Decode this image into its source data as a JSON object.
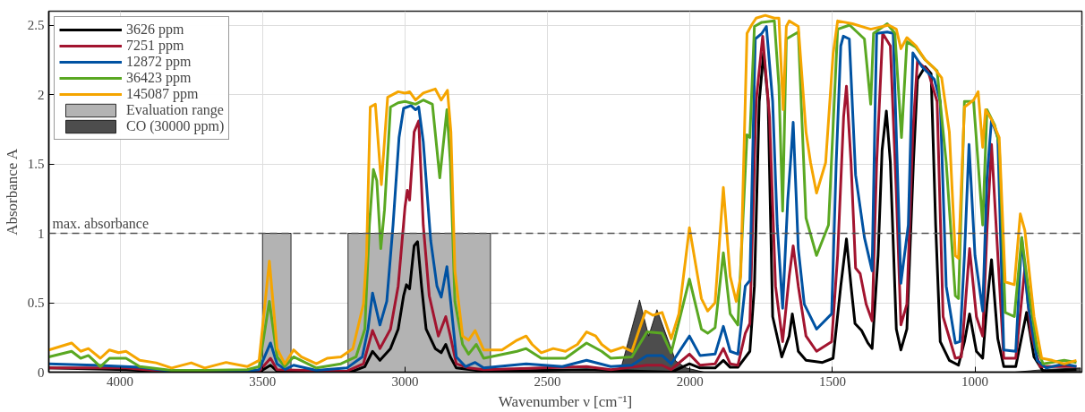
{
  "chart_data": {
    "type": "line",
    "xlabel": "Wavenumber ν [cm⁻¹]",
    "ylabel": "Absorbance A",
    "xlim": [
      4250,
      625
    ],
    "ylim": [
      0,
      2.6
    ],
    "xticks": [
      4000,
      3500,
      3000,
      2500,
      2000,
      1500,
      1000
    ],
    "yticks": [
      0,
      0.5,
      1,
      1.5,
      2,
      2.5
    ],
    "grid": true,
    "legend": "top left",
    "line_style": "solid",
    "marker": "none",
    "ref_lines": [
      {
        "axis": "y",
        "value": 1,
        "label": "max. absorbance",
        "color": "#555555",
        "line_style": "dashed"
      }
    ],
    "series": [
      {
        "name": "Evaluation range",
        "type": "area",
        "color": "#b3b3b3",
        "x": [
          3500,
          3400,
          3400,
          3200,
          3200,
          2700
        ],
        "values": [
          1,
          1,
          0,
          0,
          1,
          1
        ]
      },
      {
        "name": "CO (30000 ppm)",
        "type": "area",
        "color": "#4d4d4d",
        "x": [
          2246,
          2177,
          2145,
          2116,
          2050,
          2013,
          1950,
          860,
          750,
          630
        ],
        "values": [
          0,
          0.52,
          0.26,
          0.45,
          0.08,
          0.03,
          0,
          0,
          0.02,
          0.03
        ]
      },
      {
        "name": "3626 ppm",
        "color": "#000000",
        "x": [
          4250,
          3979,
          3819,
          3512,
          3472,
          3449,
          3183,
          3141,
          3114,
          3088,
          3051,
          3024,
          3005,
          2995,
          2984,
          2968,
          2956,
          2942,
          2926,
          2894,
          2873,
          2857,
          2841,
          2820,
          2724,
          2363,
          2066,
          2002,
          1965,
          1912,
          1883,
          1859,
          1832,
          1790,
          1774,
          1757,
          1742,
          1726,
          1710,
          1678,
          1652,
          1641,
          1620,
          1593,
          1535,
          1498,
          1471,
          1451,
          1435,
          1421,
          1398,
          1376,
          1361,
          1340,
          1326,
          1311,
          1297,
          1276,
          1260,
          1239,
          1216,
          1202,
          1175,
          1154,
          1138,
          1122,
          1090,
          1058,
          1037,
          1019,
          995,
          973,
          958,
          942,
          920,
          899,
          857,
          819,
          793,
          761,
          644
        ],
        "values": [
          0.03,
          0.018,
          0,
          0,
          0.05,
          0.007,
          0.007,
          0.04,
          0.15,
          0.085,
          0.17,
          0.31,
          0.55,
          0.63,
          0.6,
          0.91,
          0.94,
          0.62,
          0.31,
          0.17,
          0.14,
          0.2,
          0.11,
          0.03,
          0.007,
          0.018,
          0,
          0.06,
          0.03,
          0.03,
          0.085,
          0.035,
          0.035,
          0.15,
          0.62,
          1.95,
          2.3,
          1.95,
          0.4,
          0.11,
          0.26,
          0.42,
          0.15,
          0.085,
          0.07,
          0.1,
          0.62,
          0.96,
          0.62,
          0.35,
          0.3,
          0.21,
          0.17,
          0.84,
          1.6,
          1.88,
          1.51,
          0.31,
          0.16,
          0.31,
          1.51,
          2.11,
          2.2,
          2.15,
          1.06,
          0.22,
          0.085,
          0.05,
          0.22,
          0.42,
          0.15,
          0.1,
          0.49,
          0.81,
          0.24,
          0.04,
          0.04,
          0.43,
          0.11,
          0.007,
          0.018
        ]
      },
      {
        "name": "7251 ppm",
        "color": "#a2142f",
        "x": [
          4250,
          3979,
          3819,
          3512,
          3472,
          3449,
          3204,
          3146,
          3114,
          3088,
          3051,
          3024,
          3000,
          2992,
          2984,
          2968,
          2952,
          2936,
          2915,
          2883,
          2857,
          2841,
          2820,
          2777,
          2724,
          2363,
          2278,
          2151,
          2098,
          2066,
          2002,
          1965,
          1912,
          1883,
          1859,
          1832,
          1806,
          1790,
          1768,
          1745,
          1721,
          1700,
          1675,
          1652,
          1638,
          1620,
          1593,
          1556,
          1503,
          1482,
          1461,
          1451,
          1435,
          1419,
          1403,
          1382,
          1361,
          1345,
          1324,
          1297,
          1276,
          1260,
          1239,
          1218,
          1202,
          1165,
          1133,
          1112,
          1069,
          1048,
          1019,
          995,
          973,
          958,
          942,
          926,
          899,
          857,
          825,
          804,
          772,
          687,
          644
        ],
        "values": [
          0.03,
          0.03,
          0,
          0.007,
          0.1,
          0.018,
          0.007,
          0.06,
          0.3,
          0.17,
          0.31,
          0.62,
          1.19,
          1.31,
          1.24,
          1.73,
          1.81,
          1.06,
          0.55,
          0.26,
          0.4,
          0.26,
          0.06,
          0.03,
          0.018,
          0.04,
          0.018,
          0.05,
          0.05,
          0.018,
          0.13,
          0.05,
          0.06,
          0.17,
          0.06,
          0.05,
          0.28,
          0.35,
          1.95,
          2.42,
          1.84,
          0.62,
          0.22,
          0.69,
          0.91,
          0.62,
          0.26,
          0.15,
          0.22,
          0.84,
          1.84,
          2.06,
          1.51,
          0.75,
          0.71,
          0.49,
          0.37,
          1.51,
          2.44,
          2.35,
          1.29,
          0.34,
          0.49,
          1.73,
          2.24,
          2.17,
          1.95,
          0.4,
          0.1,
          0.11,
          0.89,
          0.4,
          0.26,
          1.02,
          1.64,
          1.06,
          0.1,
          0.1,
          0.75,
          0.28,
          0.04,
          0.04,
          0.04
        ]
      },
      {
        "name": "12872 ppm",
        "color": "#0052a2",
        "x": [
          4250,
          4090,
          3931,
          3819,
          3554,
          3512,
          3472,
          3449,
          3420,
          3391,
          3311,
          3204,
          3150,
          3130,
          3114,
          3088,
          3064,
          3042,
          3021,
          3005,
          2979,
          2963,
          2952,
          2936,
          2910,
          2888,
          2873,
          2853,
          2839,
          2820,
          2788,
          2754,
          2724,
          2575,
          2448,
          2363,
          2278,
          2204,
          2151,
          2098,
          2066,
          2002,
          1965,
          1912,
          1883,
          1859,
          1832,
          1806,
          1790,
          1771,
          1748,
          1732,
          1710,
          1694,
          1675,
          1657,
          1646,
          1638,
          1620,
          1599,
          1556,
          1503,
          1487,
          1471,
          1462,
          1441,
          1419,
          1388,
          1361,
          1350,
          1345,
          1308,
          1287,
          1260,
          1234,
          1218,
          1186,
          1143,
          1122,
          1101,
          1069,
          1053,
          1037,
          1021,
          1000,
          973,
          958,
          942,
          920,
          899,
          857,
          836,
          814,
          782,
          750,
          687,
          644
        ],
        "values": [
          0.06,
          0.05,
          0.035,
          0.007,
          0.007,
          0.018,
          0.21,
          0.06,
          0.02,
          0.05,
          0.013,
          0.03,
          0.11,
          0.31,
          0.57,
          0.34,
          0.51,
          1.06,
          1.69,
          1.9,
          1.92,
          1.89,
          1.91,
          1.66,
          0.95,
          0.62,
          0.54,
          0.76,
          0.49,
          0.11,
          0.04,
          0.07,
          0.03,
          0.06,
          0.04,
          0.085,
          0.04,
          0.05,
          0.12,
          0.12,
          0.06,
          0.26,
          0.12,
          0.13,
          0.33,
          0.15,
          0.13,
          0.62,
          0.66,
          2.4,
          2.44,
          2.49,
          1.95,
          1.06,
          0.46,
          1.24,
          1.55,
          1.8,
          0.89,
          0.49,
          0.31,
          0.42,
          1.51,
          2.35,
          2.42,
          2.4,
          1.42,
          0.97,
          0.73,
          1.95,
          2.44,
          2.45,
          2.44,
          0.64,
          1.06,
          2.3,
          2.2,
          2.11,
          1.95,
          0.62,
          0.21,
          0.22,
          0.84,
          1.64,
          0.84,
          0.44,
          1.4,
          1.82,
          1.69,
          0.16,
          0.15,
          0.97,
          0.49,
          0.085,
          0.03,
          0.06,
          0.04
        ]
      },
      {
        "name": "36423 ppm",
        "color": "#5aa822",
        "x": [
          4250,
          4170,
          4138,
          4111,
          4069,
          4037,
          3979,
          3931,
          3819,
          3703,
          3554,
          3512,
          3476,
          3449,
          3422,
          3391,
          3311,
          3225,
          3172,
          3141,
          3125,
          3111,
          3099,
          3085,
          3072,
          3051,
          3024,
          3000,
          2963,
          2936,
          2904,
          2878,
          2853,
          2841,
          2825,
          2798,
          2777,
          2750,
          2724,
          2607,
          2575,
          2522,
          2437,
          2363,
          2310,
          2278,
          2204,
          2151,
          2098,
          2066,
          2002,
          1960,
          1938,
          1912,
          1883,
          1859,
          1832,
          1800,
          1790,
          1774,
          1748,
          1704,
          1688,
          1675,
          1662,
          1620,
          1593,
          1556,
          1514,
          1482,
          1440,
          1388,
          1366,
          1356,
          1308,
          1281,
          1258,
          1239,
          1207,
          1175,
          1133,
          1101,
          1069,
          1058,
          1037,
          1005,
          973,
          958,
          931,
          915,
          894,
          862,
          836,
          814,
          782,
          761,
          687,
          644
        ],
        "values": [
          0.11,
          0.15,
          0.1,
          0.12,
          0.04,
          0.1,
          0.1,
          0.04,
          0.013,
          0.013,
          0.018,
          0.04,
          0.51,
          0.11,
          0.04,
          0.11,
          0.03,
          0.06,
          0.11,
          0.31,
          1.06,
          1.46,
          1.38,
          0.89,
          1.17,
          1.91,
          1.94,
          1.95,
          1.93,
          1.96,
          1.93,
          1.4,
          1.89,
          1.51,
          0.51,
          0.2,
          0.13,
          0.2,
          0.1,
          0.15,
          0.17,
          0.1,
          0.1,
          0.21,
          0.15,
          0.1,
          0.11,
          0.29,
          0.28,
          0.14,
          0.67,
          0.31,
          0.28,
          0.32,
          0.86,
          0.42,
          0.34,
          1.71,
          1.69,
          2.49,
          2.52,
          2.53,
          2.06,
          1.16,
          2.4,
          2.45,
          1.11,
          0.84,
          1.06,
          2.47,
          2.5,
          2.4,
          1.93,
          2.44,
          2.51,
          2.44,
          1.69,
          2.38,
          2.34,
          2.25,
          2.17,
          1.51,
          0.55,
          0.53,
          1.95,
          1.95,
          1.06,
          1.89,
          1.78,
          1.64,
          0.43,
          0.4,
          0.97,
          0.62,
          0.17,
          0.06,
          0.085,
          0.07
        ]
      },
      {
        "name": "145087 ppm",
        "color": "#f5a500",
        "x": [
          4250,
          4170,
          4138,
          4111,
          4069,
          4037,
          4005,
          3979,
          3931,
          3873,
          3819,
          3750,
          3703,
          3628,
          3554,
          3512,
          3476,
          3449,
          3422,
          3391,
          3364,
          3311,
          3273,
          3225,
          3183,
          3146,
          3135,
          3122,
          3104,
          3083,
          3061,
          3024,
          3000,
          2984,
          2963,
          2936,
          2894,
          2873,
          2851,
          2839,
          2825,
          2798,
          2777,
          2754,
          2724,
          2660,
          2607,
          2575,
          2554,
          2522,
          2480,
          2437,
          2395,
          2363,
          2331,
          2310,
          2278,
          2235,
          2204,
          2156,
          2130,
          2098,
          2066,
          2039,
          2002,
          1960,
          1938,
          1912,
          1883,
          1859,
          1838,
          1822,
          1800,
          1784,
          1768,
          1736,
          1704,
          1688,
          1673,
          1662,
          1652,
          1620,
          1593,
          1577,
          1556,
          1524,
          1498,
          1482,
          1430,
          1366,
          1303,
          1276,
          1260,
          1239,
          1207,
          1175,
          1143,
          1117,
          1090,
          1069,
          1058,
          1037,
          1005,
          989,
          973,
          963,
          942,
          915,
          894,
          862,
          841,
          825,
          793,
          766,
          729,
          687,
          644
        ],
        "values": [
          0.16,
          0.21,
          0.15,
          0.17,
          0.1,
          0.16,
          0.14,
          0.15,
          0.085,
          0.067,
          0.03,
          0.067,
          0.03,
          0.07,
          0.04,
          0.085,
          0.8,
          0.17,
          0.06,
          0.16,
          0.11,
          0.06,
          0.1,
          0.11,
          0.17,
          0.49,
          0.84,
          1.91,
          1.93,
          1.35,
          1.98,
          2.02,
          2.01,
          2.02,
          1.96,
          2.01,
          2.04,
          1.96,
          2.03,
          1.73,
          0.73,
          0.26,
          0.23,
          0.3,
          0.16,
          0.16,
          0.23,
          0.26,
          0.2,
          0.14,
          0.17,
          0.15,
          0.2,
          0.29,
          0.26,
          0.2,
          0.15,
          0.18,
          0.15,
          0.44,
          0.41,
          0.43,
          0.24,
          0.42,
          1.04,
          0.53,
          0.44,
          0.5,
          1.33,
          0.69,
          0.51,
          0.69,
          2.44,
          2.5,
          2.55,
          2.57,
          2.55,
          2.55,
          1.89,
          2.49,
          2.53,
          2.49,
          1.73,
          1.51,
          1.29,
          1.51,
          2.29,
          2.53,
          2.51,
          2.47,
          2.5,
          2.47,
          2.33,
          2.41,
          2.35,
          2.25,
          2.19,
          2.12,
          1.73,
          0.84,
          0.82,
          1.91,
          1.96,
          2.02,
          1.62,
          1.89,
          1.82,
          1.69,
          0.65,
          0.63,
          1.14,
          1.02,
          0.4,
          0.1,
          0.085,
          0.06,
          0.085
        ]
      }
    ]
  }
}
